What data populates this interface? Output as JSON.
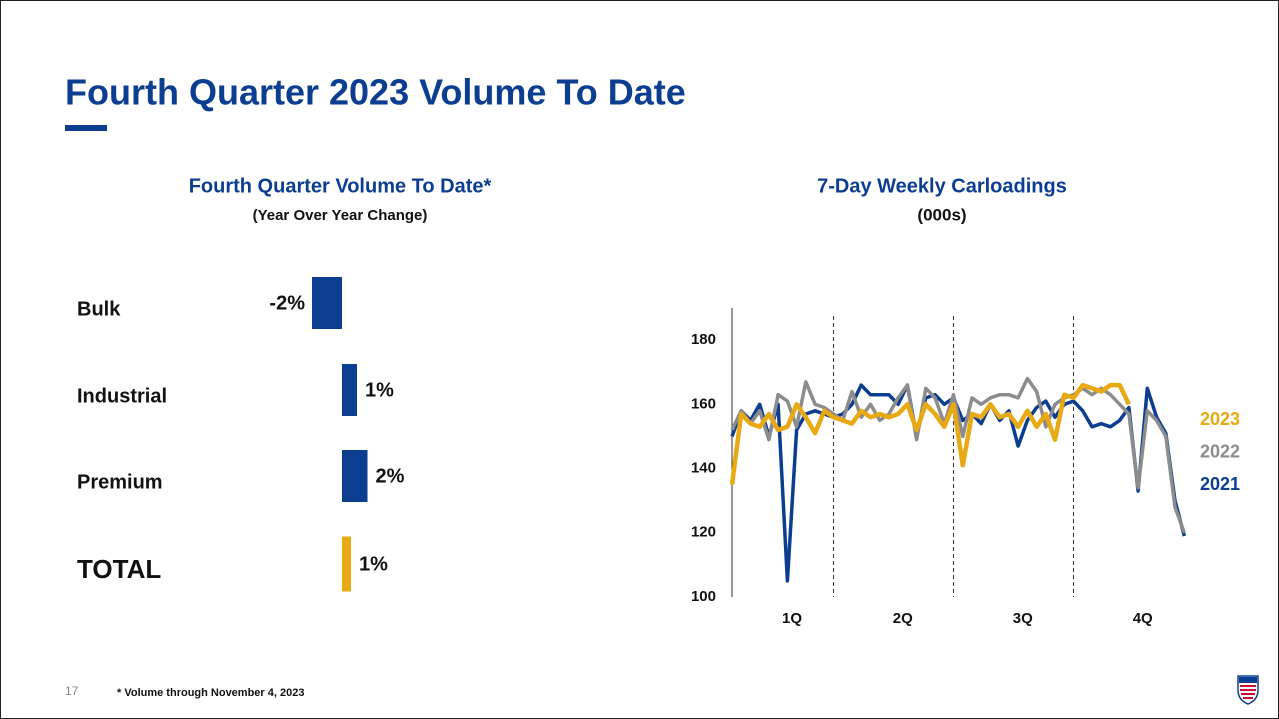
{
  "title": "Fourth Quarter 2023 Volume To Date",
  "footnote": "* Volume through November 4, 2023",
  "page_number": "17",
  "chart_data": [
    {
      "type": "bar",
      "orientation": "horizontal",
      "title": "Fourth Quarter Volume To Date*",
      "subtitle": "(Year Over Year Change)",
      "categories": [
        "Bulk",
        "Industrial",
        "Premium",
        "TOTAL"
      ],
      "values": [
        -2,
        1,
        1.7,
        0.6
      ],
      "value_labels": [
        "-2%",
        "1%",
        "2%",
        "1%"
      ],
      "colors": [
        "#0b3d91",
        "#0b3d91",
        "#0b3d91",
        "#e8a912"
      ]
    },
    {
      "type": "line",
      "title": "7-Day Weekly Carloadings",
      "subtitle": "(000s)",
      "x": [
        2,
        3,
        4,
        5,
        6,
        7,
        8,
        9,
        10,
        11,
        12,
        13,
        14,
        15,
        16,
        17,
        18,
        19,
        20,
        21,
        22,
        23,
        24,
        25,
        26,
        27,
        28,
        29,
        30,
        31,
        32,
        33,
        34,
        35,
        36,
        37,
        38,
        39,
        40,
        41,
        42,
        43,
        44,
        45,
        46,
        47,
        48,
        49,
        50,
        51
      ],
      "xlim": [
        2,
        52
      ],
      "xticks": [
        {
          "value": 8.5,
          "label": "1Q"
        },
        {
          "value": 20.5,
          "label": "2Q"
        },
        {
          "value": 33.5,
          "label": "3Q"
        },
        {
          "value": 46.5,
          "label": "4Q"
        }
      ],
      "dividers": [
        13,
        26,
        39
      ],
      "ylim": [
        100,
        190
      ],
      "yticks": [
        100,
        120,
        140,
        160,
        180
      ],
      "series": [
        {
          "name": "2023",
          "color": "#e8a912",
          "values": [
            135,
            157,
            154,
            153,
            157,
            152,
            153,
            160,
            156,
            151,
            158,
            156,
            155,
            154,
            158,
            156,
            157,
            156,
            157,
            160,
            152,
            160,
            157,
            153,
            160,
            141,
            157,
            156,
            160,
            156,
            157,
            153,
            158,
            153,
            157,
            149,
            163,
            162,
            166,
            165,
            164,
            166,
            166,
            160,
            null,
            null,
            null,
            null,
            null,
            null
          ]
        },
        {
          "name": "2022",
          "color": "#8c8c8c",
          "values": [
            152,
            158,
            154,
            158,
            149,
            163,
            161,
            153,
            167,
            160,
            159,
            157,
            155,
            164,
            156,
            160,
            155,
            157,
            162,
            166,
            149,
            165,
            162,
            154,
            163,
            150,
            162,
            160,
            162,
            163,
            163,
            162,
            168,
            164,
            153,
            160,
            162,
            163,
            165,
            163,
            165,
            163,
            160,
            157,
            134,
            158,
            155,
            150,
            128,
            120
          ]
        },
        {
          "name": "2021",
          "color": "#0b3d91",
          "values": [
            150,
            158,
            155,
            160,
            150,
            160,
            105,
            152,
            157,
            158,
            157,
            156,
            157,
            160,
            166,
            163,
            163,
            163,
            160,
            166,
            150,
            162,
            163,
            160,
            162,
            155,
            157,
            154,
            160,
            155,
            158,
            147,
            155,
            159,
            161,
            156,
            160,
            161,
            158,
            153,
            154,
            153,
            155,
            159,
            133,
            165,
            156,
            151,
            130,
            119
          ]
        }
      ]
    }
  ]
}
